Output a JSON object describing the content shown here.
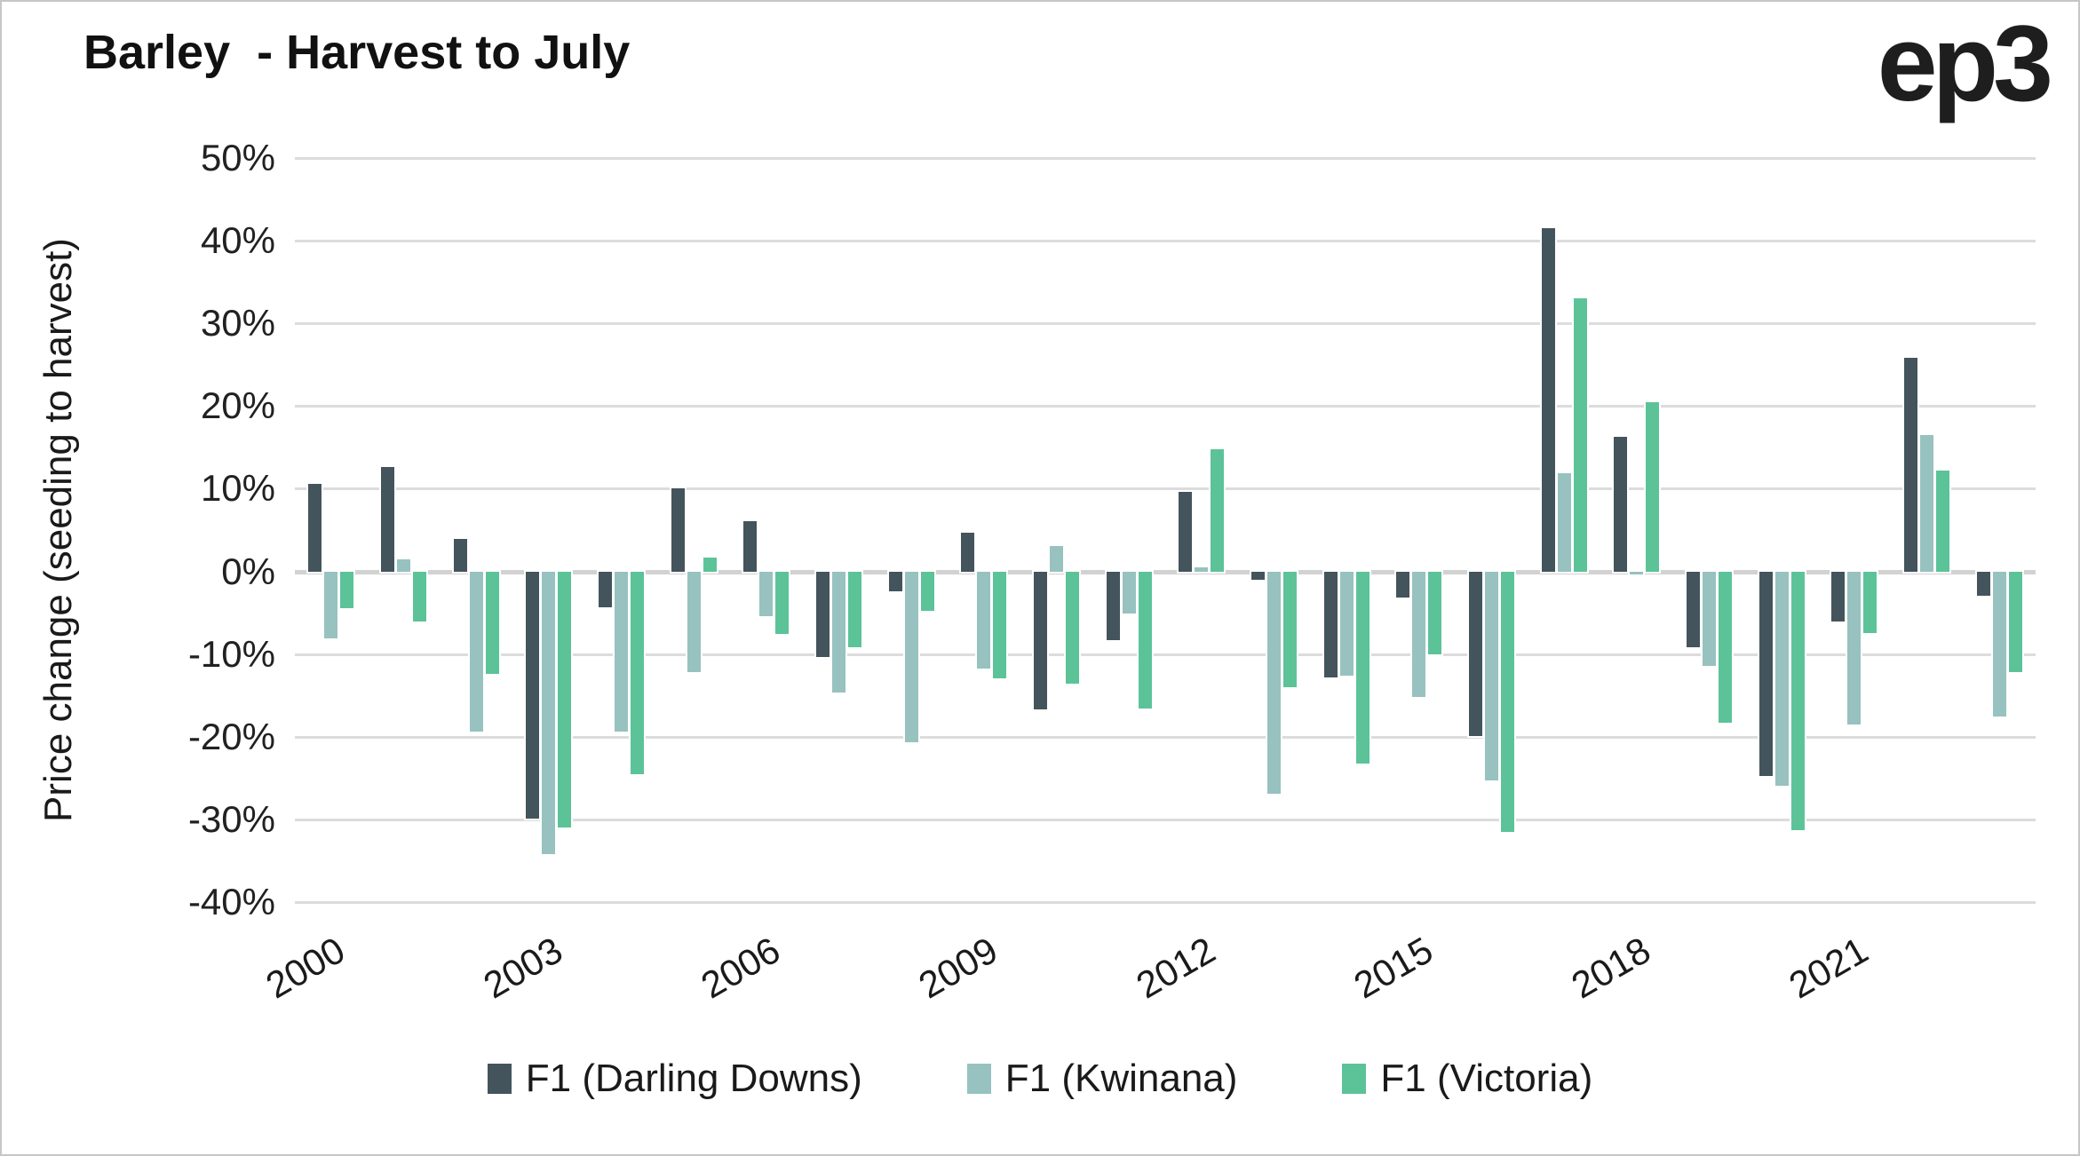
{
  "header": {
    "title": "Barley  - Harvest to July",
    "logo": "ep3"
  },
  "y_axis": {
    "title": "Price change (seeding to harvest)"
  },
  "chart_data": {
    "type": "bar",
    "title": "Barley - Harvest to July",
    "xlabel": "",
    "ylabel": "Price change (seeding to harvest)",
    "ylim": [
      -40,
      50
    ],
    "ytick_step": 10,
    "ytick_suffix": "%",
    "grid": true,
    "legend_position": "bottom",
    "categories": [
      2000,
      2001,
      2002,
      2003,
      2004,
      2005,
      2006,
      2007,
      2008,
      2009,
      2010,
      2011,
      2012,
      2013,
      2014,
      2015,
      2016,
      2017,
      2018,
      2019,
      2020,
      2021,
      2022,
      2023
    ],
    "x_tick_labels": [
      "2000",
      "2003",
      "2006",
      "2009",
      "2012",
      "2015",
      "2018",
      "2021"
    ],
    "unit": "%",
    "series": [
      {
        "name": "F1 (Darling Downs)",
        "color": "#44545c",
        "values": [
          10.6,
          12.6,
          3.9,
          -29.9,
          -4.3,
          10.0,
          6.1,
          -10.4,
          -2.4,
          4.7,
          -16.7,
          -8.3,
          9.6,
          -1.0,
          -12.8,
          -3.2,
          -19.9,
          41.5,
          16.3,
          -9.2,
          -24.7,
          -6.1,
          25.8,
          -3.0
        ]
      },
      {
        "name": "F1 (Kwinana)",
        "color": "#97c2bf",
        "values": [
          -8.1,
          1.5,
          -19.4,
          -34.2,
          -19.4,
          -12.2,
          -5.4,
          -14.7,
          -20.7,
          -11.8,
          3.1,
          -5.1,
          0.5,
          -26.9,
          -12.6,
          -15.2,
          -25.3,
          11.9,
          -0.4,
          -11.4,
          -25.9,
          -18.5,
          16.5,
          -17.6
        ]
      },
      {
        "name": "F1 (Victoria)",
        "color": "#5cc399",
        "values": [
          -4.4,
          -6.1,
          -12.4,
          -31.0,
          -24.5,
          1.7,
          -7.6,
          -9.2,
          -4.8,
          -12.9,
          -13.6,
          -16.6,
          14.8,
          -14.0,
          -23.3,
          -10.0,
          -31.5,
          33.0,
          20.5,
          -18.3,
          -31.3,
          -7.5,
          12.2,
          -12.2
        ]
      }
    ]
  }
}
